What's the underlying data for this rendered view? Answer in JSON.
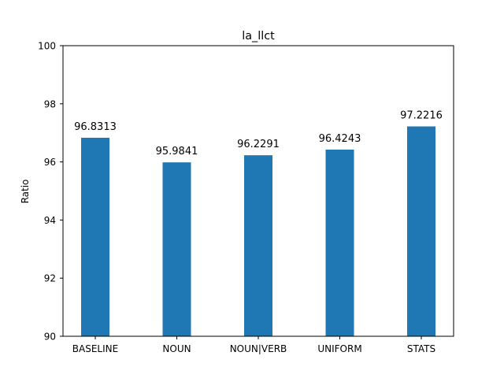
{
  "chart_data": {
    "type": "bar",
    "title": "la_llct",
    "xlabel": "",
    "ylabel": "Ratio",
    "categories": [
      "BASELINE",
      "NOUN",
      "NOUN|VERB",
      "UNIFORM",
      "STATS"
    ],
    "values": [
      96.8313,
      95.9841,
      96.2291,
      96.4243,
      97.2216
    ],
    "value_labels": [
      "96.8313",
      "95.9841",
      "96.2291",
      "96.4243",
      "97.2216"
    ],
    "ylim": [
      90,
      100
    ],
    "yticks": [
      90,
      92,
      94,
      96,
      98,
      100
    ],
    "grid": false,
    "legend": "none",
    "bar_color": "#1f77b4"
  }
}
